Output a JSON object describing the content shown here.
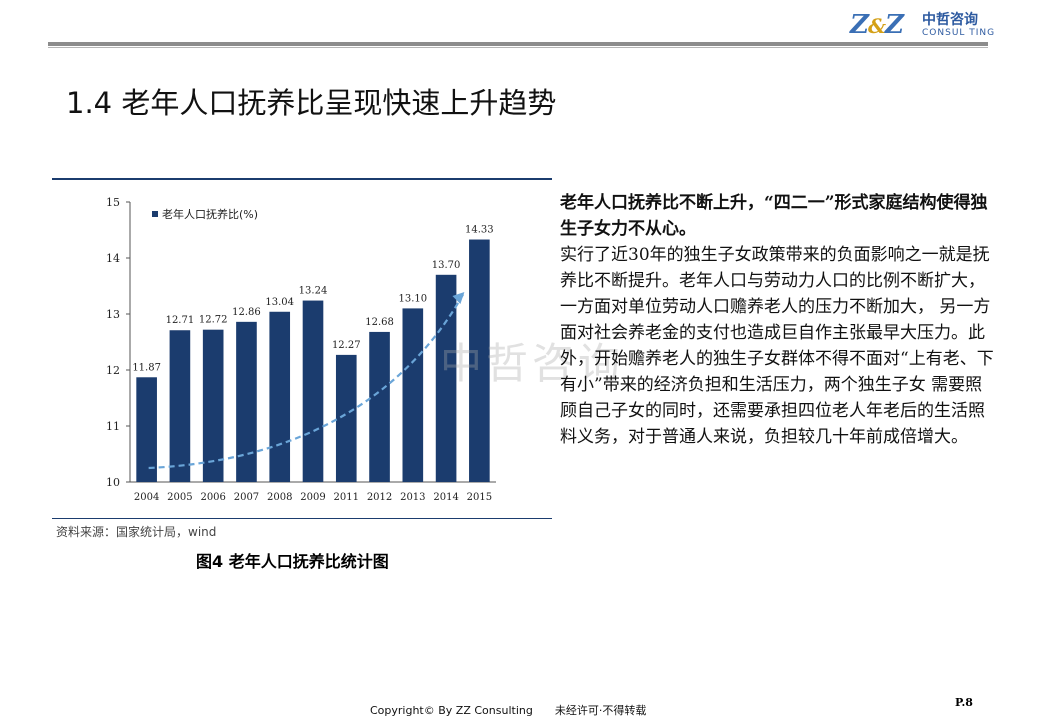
{
  "header": {
    "logo_mark": "Z",
    "logo_amp": "&",
    "logo_mark2": "Z",
    "logo_cn": "中哲咨询",
    "logo_en": "CONSUL TING"
  },
  "title": "1.4 老年人口抚养比呈现快速上升趋势",
  "chart_data": {
    "type": "bar",
    "categories": [
      "2004",
      "2005",
      "2006",
      "2007",
      "2008",
      "2009",
      "2011",
      "2012",
      "2013",
      "2014",
      "2015"
    ],
    "series": [
      {
        "name": "老年人口抚养比(%)",
        "values": [
          11.87,
          12.71,
          12.72,
          12.86,
          13.04,
          13.24,
          12.27,
          12.68,
          13.1,
          13.7,
          14.33
        ]
      }
    ],
    "value_labels": [
      "11.87",
      "12.71",
      "12.72",
      "12.86",
      "13.04",
      "13.24",
      "12.27",
      "12.68",
      "13.10",
      "13.70",
      "14.33"
    ],
    "ylim": [
      10,
      15
    ],
    "yticks": [
      10,
      11,
      12,
      13,
      14,
      15
    ],
    "legend_position": "top-left",
    "trend_arrow": "dashed, rising",
    "bar_color": "#1b3c6e",
    "arrow_color": "#6aa5d8"
  },
  "source": "资料来源：国家统计局，wind",
  "caption": "图4 老年人口抚养比统计图",
  "watermark": "中哲咨询",
  "body": {
    "lead": "老年人口抚养比不断上升，“四二一”形式家庭结构使得独生子女力不从心。",
    "para": "实行了近30年的独生子女政策带来的负面影响之一就是抚养比不断提升。老年人口与劳动力人口的比例不断扩大，一方面对单位劳动人口赡养老人的压力不断加大， 另一方面对社会养老金的支付也造成巨自作主张最早大压力。此外，开始赡养老人的独生子女群体不得不面对“上有老、下有小”带来的经济负担和生活压力，两个独生子女 需要照顾自己子女的同时，还需要承担四位老人年老后的生活照料义务，对于普通人来说，负担较几十年前成倍增大。"
  },
  "footer": {
    "copyright": "Copyright© By  ZZ Consulting",
    "notice": "未经许可·不得转载",
    "page": "P.8"
  }
}
